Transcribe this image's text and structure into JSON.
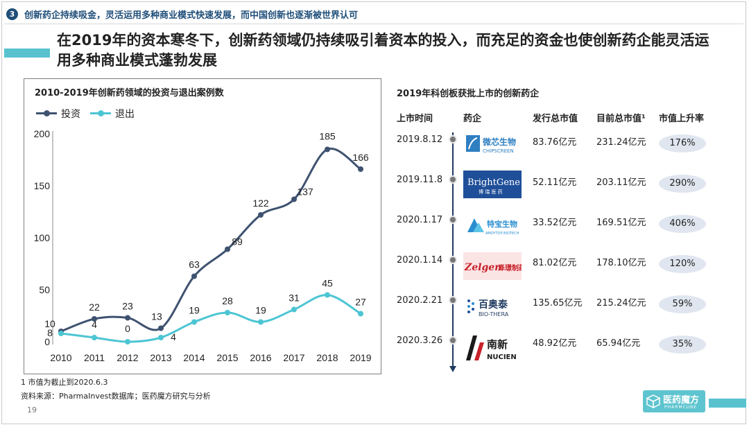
{
  "section": {
    "number": "3",
    "title": "创新药企持续吸金，灵活运用多种商业模式快速发展，而中国创新也逐渐被世界认可"
  },
  "headline": "在2019年的资本寒冬下，创新药领域仍持续吸引着资本的投入，而充足的资金也使创新药企能灵活运用多种商业模式蓬勃发展",
  "chart_data": {
    "type": "line",
    "title": "2010-2019年创新药领域的投资与退出案例数",
    "categories": [
      "2010",
      "2011",
      "2012",
      "2013",
      "2014",
      "2015",
      "2016",
      "2017",
      "2018",
      "2019"
    ],
    "series": [
      {
        "name": "投资",
        "color": "#3e5270",
        "values": [
          10,
          22,
          23,
          13,
          63,
          89,
          122,
          137,
          185,
          166
        ]
      },
      {
        "name": "退出",
        "color": "#4cc5d3",
        "values": [
          8,
          4,
          0,
          4,
          19,
          28,
          19,
          31,
          45,
          27
        ]
      }
    ],
    "ylim": [
      0,
      200
    ],
    "yticks": [
      "0",
      "50",
      "100",
      "150",
      "200"
    ],
    "legend": "top-left",
    "grid": false
  },
  "table": {
    "title": "2019年科创板获批上市的创新药企",
    "headers": [
      "上市时间",
      "药企",
      "发行总市值",
      "目前总市值¹",
      "市值上升率"
    ],
    "rows": [
      {
        "date": "2019.8.12",
        "company": "微芯生物",
        "company_en": "CHIPSCREEN",
        "issue_cap": "83.76亿元",
        "current_cap": "231.24亿元",
        "rise": "176%"
      },
      {
        "date": "2019.11.8",
        "company": "BrightGene",
        "company_en": "博瑞医药",
        "issue_cap": "52.11亿元",
        "current_cap": "203.11亿元",
        "rise": "290%"
      },
      {
        "date": "2020.1.17",
        "company": "特宝生物",
        "company_en": "AMOYTOP BIOTECH",
        "issue_cap": "33.52亿元",
        "current_cap": "169.51亿元",
        "rise": "406%"
      },
      {
        "date": "2020.1.14",
        "company": "泽璟制药",
        "company_en": "Zelgen",
        "issue_cap": "81.02亿元",
        "current_cap": "178.10亿元",
        "rise": "120%"
      },
      {
        "date": "2020.2.21",
        "company": "百奥泰",
        "company_en": "BIO-THERA",
        "issue_cap": "135.65亿元",
        "current_cap": "215.24亿元",
        "rise": "59%"
      },
      {
        "date": "2020.3.26",
        "company": "南新",
        "company_en": "NUCIEN",
        "issue_cap": "48.92亿元",
        "current_cap": "65.94亿元",
        "rise": "35%"
      }
    ]
  },
  "footnote": "1 市值为截止到2020.6.3",
  "source": "资料来源：PharmaInvest数据库；医药魔方研究与分析",
  "page_number": "19",
  "brand": {
    "name": "医药魔方",
    "en": "PHARMCUBE"
  }
}
